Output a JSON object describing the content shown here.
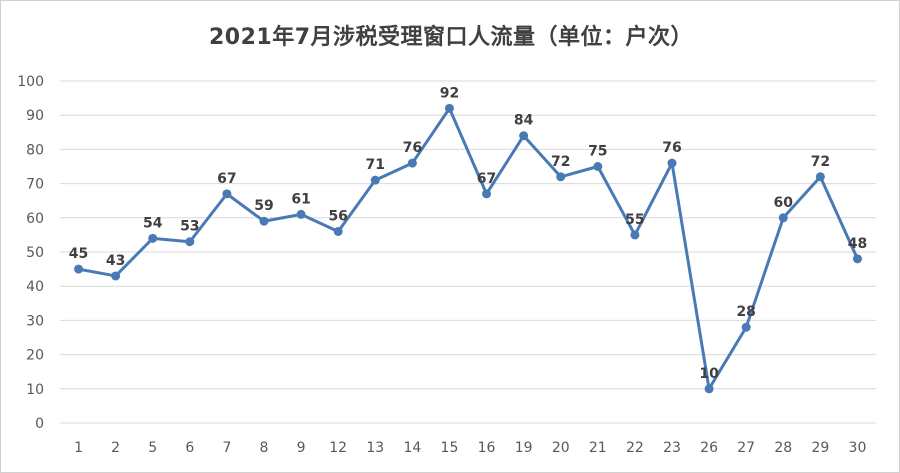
{
  "chart_data": {
    "type": "line",
    "title": "2021年7月涉税受理窗口人流量（单位：户次）",
    "categories": [
      "1",
      "2",
      "5",
      "6",
      "7",
      "8",
      "9",
      "12",
      "13",
      "14",
      "15",
      "16",
      "19",
      "20",
      "21",
      "22",
      "23",
      "26",
      "27",
      "28",
      "29",
      "30"
    ],
    "series": [
      {
        "values": [
          45,
          43,
          54,
          53,
          67,
          59,
          61,
          56,
          71,
          76,
          92,
          67,
          84,
          72,
          75,
          55,
          76,
          10,
          28,
          60,
          72,
          48
        ]
      }
    ],
    "ylim": [
      0,
      100
    ],
    "yticks": [
      0,
      10,
      20,
      30,
      40,
      50,
      60,
      70,
      80,
      90,
      100
    ],
    "grid": true,
    "line_color": "#4a7ab5",
    "data_labels": true
  }
}
